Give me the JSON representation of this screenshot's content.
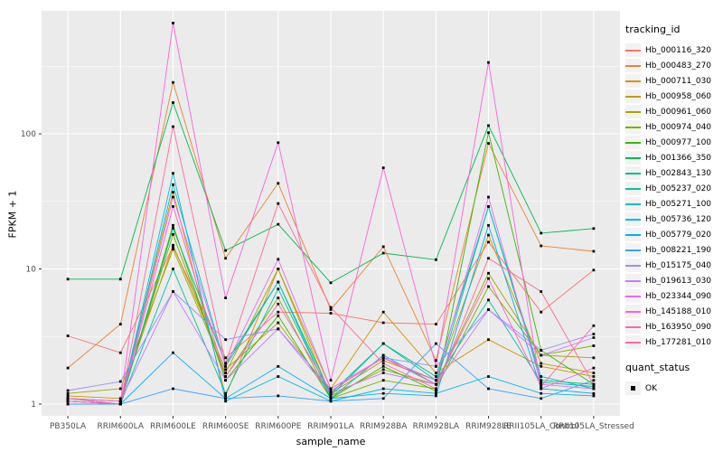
{
  "figure": {
    "background": "#ffffff",
    "panel_background": "#EBEBEB",
    "grid_color": "#FFFFFF",
    "tick_label_color": "#4D4D4D",
    "point_color": "#000000"
  },
  "chart_data": {
    "type": "line",
    "title": "",
    "xlabel": "sample_name",
    "ylabel": "FPKM + 1",
    "y_scale": "log10",
    "ylim": [
      0.82,
      780
    ],
    "y_major_ticks": [
      "1",
      "10",
      "100"
    ],
    "y_major_values": [
      1,
      10,
      100
    ],
    "y_minor_values": [
      3.162,
      31.62,
      316.2
    ],
    "grid": true,
    "legend_position": "right",
    "point_shape": "filled-square",
    "categories": [
      "PB350LA",
      "RRIM600LA",
      "RRIM600LE",
      "RRIM600SE",
      "RRIM600PE",
      "RRIM901LA",
      "RRIM928BA",
      "RRIM928LA",
      "RRIM928LE",
      "RRII105LA_Control",
      "RRII105LA_Stressed"
    ],
    "legend_title": "tracking_id",
    "series": [
      {
        "name": "Hb_000116_320",
        "color": "#F8766D",
        "values": [
          3.2,
          2.4,
          14.6,
          2.2,
          4.8,
          4.7,
          4.0,
          3.9,
          15.8,
          4.8,
          9.8
        ]
      },
      {
        "name": "Hb_000483_270",
        "color": "#EA8331",
        "values": [
          1.85,
          3.9,
          240,
          12,
          43,
          5.0,
          14.6,
          2.1,
          85,
          14.8,
          13.5
        ]
      },
      {
        "name": "Hb_000711_030",
        "color": "#D89000",
        "values": [
          1.1,
          1.05,
          37,
          1.15,
          10,
          1.3,
          4.8,
          1.7,
          3.0,
          1.9,
          1.6
        ]
      },
      {
        "name": "Hb_000958_060",
        "color": "#C09B00",
        "values": [
          1.15,
          1.1,
          15,
          1.8,
          4.0,
          1.2,
          2.1,
          1.5,
          17.8,
          2.0,
          1.7
        ]
      },
      {
        "name": "Hb_000961_060",
        "color": "#A3A500",
        "values": [
          1.2,
          1.3,
          14,
          1.7,
          10,
          1.15,
          1.8,
          1.4,
          9.3,
          2.3,
          2.2
        ]
      },
      {
        "name": "Hb_000974_040",
        "color": "#7CAE00",
        "values": [
          1.1,
          1.05,
          18,
          1.6,
          6.1,
          1.1,
          1.5,
          1.3,
          7.4,
          2.3,
          2.7
        ]
      },
      {
        "name": "Hb_000977_100",
        "color": "#39B600",
        "values": [
          1.05,
          1.0,
          21,
          1.5,
          4.5,
          1.1,
          1.9,
          1.25,
          102,
          2.5,
          1.4
        ]
      },
      {
        "name": "Hb_001366_350",
        "color": "#00BB4E",
        "values": [
          8.4,
          8.4,
          170,
          13.7,
          21.4,
          7.9,
          13.1,
          11.7,
          115,
          18.4,
          19.9
        ]
      },
      {
        "name": "Hb_002843_130",
        "color": "#00BF7D",
        "values": [
          1.1,
          1.0,
          20,
          2.0,
          8.0,
          1.2,
          2.8,
          1.6,
          29,
          1.5,
          1.4
        ]
      },
      {
        "name": "Hb_005237_020",
        "color": "#00C1A3",
        "values": [
          1.1,
          1.0,
          10,
          1.2,
          7.1,
          1.15,
          2.8,
          1.5,
          5.9,
          1.45,
          1.35
        ]
      },
      {
        "name": "Hb_005271_100",
        "color": "#00BFC4",
        "values": [
          1.05,
          1.0,
          42,
          1.9,
          8.0,
          1.1,
          2.3,
          1.4,
          29,
          1.6,
          1.3
        ]
      },
      {
        "name": "Hb_005736_120",
        "color": "#00BAE0",
        "values": [
          1.0,
          1.0,
          51,
          1.05,
          1.6,
          1.05,
          1.3,
          1.2,
          1.6,
          1.2,
          1.15
        ]
      },
      {
        "name": "Hb_005779_020",
        "color": "#00B0F6",
        "values": [
          1.05,
          1.0,
          2.4,
          1.1,
          1.9,
          1.1,
          1.2,
          1.15,
          21,
          1.3,
          1.2
        ]
      },
      {
        "name": "Hb_008221_190",
        "color": "#35A2FF",
        "values": [
          1.0,
          1.0,
          1.3,
          1.1,
          1.15,
          1.05,
          1.1,
          2.8,
          1.3,
          1.1,
          1.5
        ]
      },
      {
        "name": "Hb_015175_040",
        "color": "#9590FF",
        "values": [
          1.26,
          1.47,
          6.8,
          3.0,
          3.6,
          1.3,
          2.2,
          1.9,
          5.0,
          2.5,
          3.3
        ]
      },
      {
        "name": "Hb_019613_030",
        "color": "#C77CFF",
        "values": [
          1.1,
          1.05,
          6.8,
          1.5,
          3.6,
          1.2,
          1.7,
          1.4,
          5.0,
          2.3,
          3.1
        ]
      },
      {
        "name": "Hb_023344_090",
        "color": "#E76BF3",
        "values": [
          1.05,
          1.0,
          34,
          1.9,
          11.8,
          1.3,
          2.2,
          1.5,
          34,
          1.4,
          1.3
        ]
      },
      {
        "name": "Hb_145188_010",
        "color": "#FA62DB",
        "values": [
          1.1,
          1.05,
          660,
          6.1,
          86,
          1.5,
          56,
          1.9,
          337,
          1.3,
          1.85
        ]
      },
      {
        "name": "Hb_163950_090",
        "color": "#FF62BC",
        "values": [
          1.05,
          1.0,
          29,
          1.6,
          5.5,
          1.25,
          2.2,
          1.4,
          8.5,
          1.35,
          3.8
        ]
      },
      {
        "name": "Hb_177281_010",
        "color": "#FF6A98",
        "values": [
          1.1,
          1.0,
          113,
          2.0,
          30.5,
          5.2,
          2.0,
          1.3,
          12,
          6.8,
          1.4
        ]
      }
    ],
    "legend2_title": "quant_status",
    "legend2_items": [
      {
        "label": "OK",
        "color": "#000000"
      }
    ]
  }
}
